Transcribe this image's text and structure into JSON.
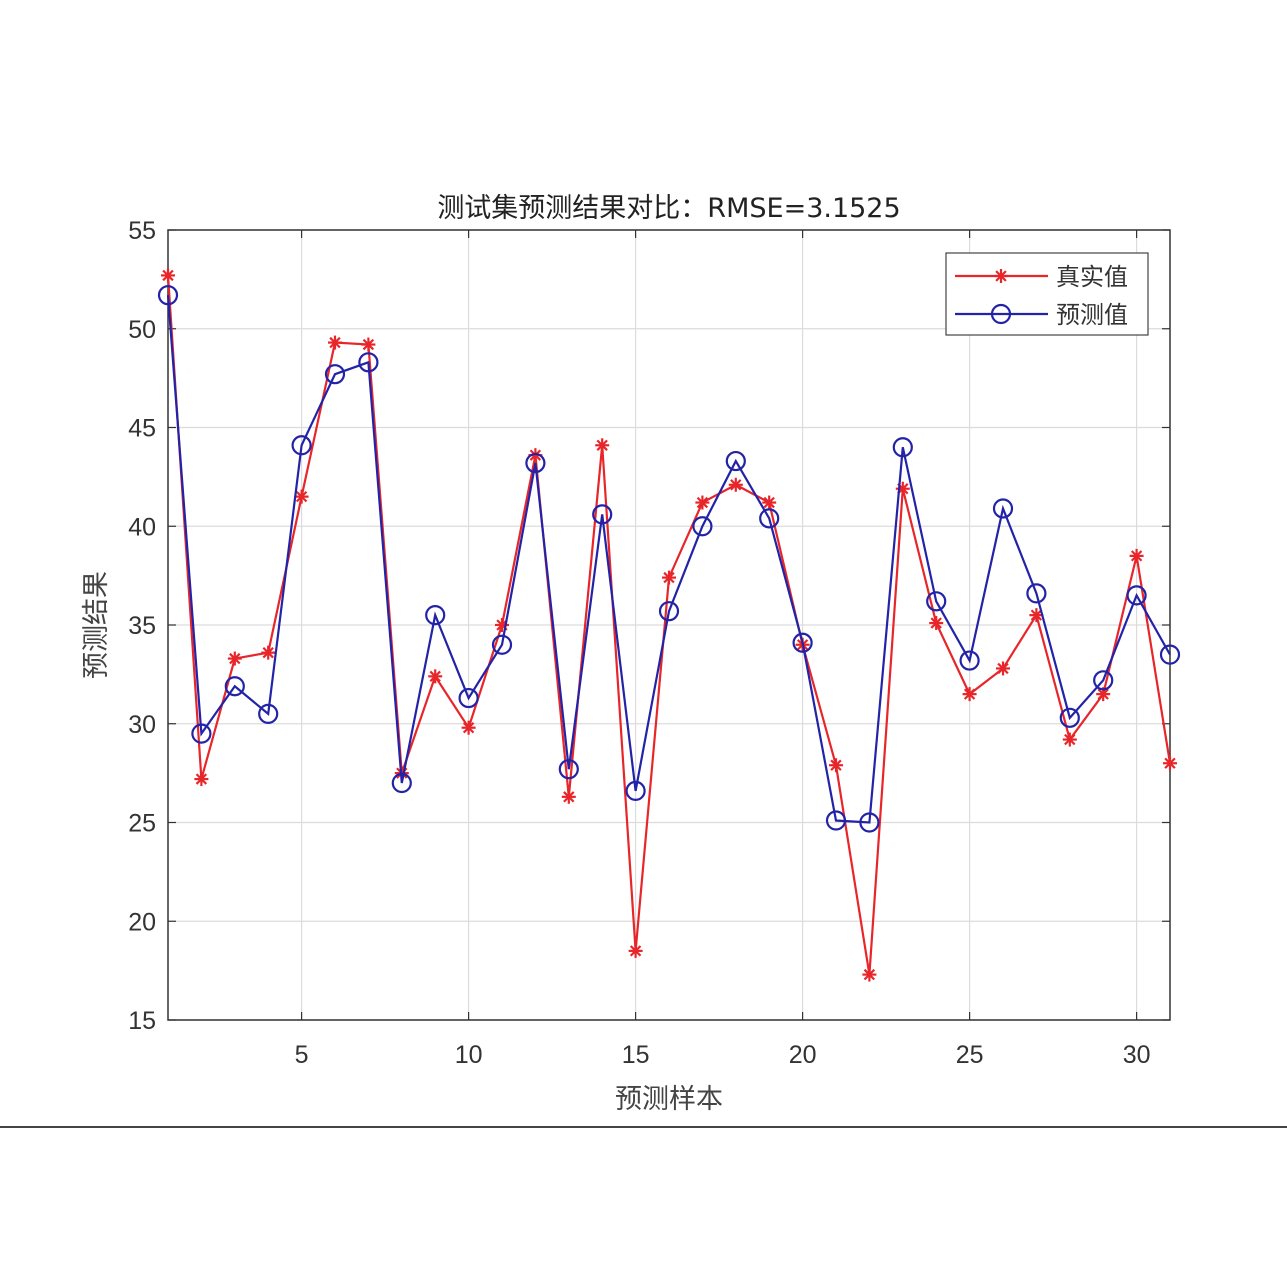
{
  "chart_data": {
    "type": "line",
    "title": "测试集预测结果对比：RMSE=3.1525",
    "xlabel": "预测样本",
    "ylabel": "预测结果",
    "xlim": [
      1,
      31
    ],
    "ylim": [
      15,
      55
    ],
    "xticks": [
      5,
      10,
      15,
      20,
      25,
      30
    ],
    "yticks": [
      15,
      20,
      25,
      30,
      35,
      40,
      45,
      50,
      55
    ],
    "grid": true,
    "legend_position": "upper right",
    "x": [
      1,
      2,
      3,
      4,
      5,
      6,
      7,
      8,
      9,
      10,
      11,
      12,
      13,
      14,
      15,
      16,
      17,
      18,
      19,
      20,
      21,
      22,
      23,
      24,
      25,
      26,
      27,
      28,
      29,
      30,
      31
    ],
    "series": [
      {
        "name": "真实值",
        "color": "#e8262a",
        "marker": "asterisk",
        "values": [
          52.7,
          27.2,
          33.3,
          33.6,
          41.5,
          49.3,
          49.2,
          27.5,
          32.4,
          29.8,
          35.0,
          43.6,
          26.3,
          44.1,
          18.5,
          37.4,
          41.2,
          42.1,
          41.2,
          34.0,
          27.9,
          17.3,
          41.9,
          35.1,
          31.5,
          32.8,
          35.5,
          29.2,
          31.5,
          38.5,
          28.0
        ]
      },
      {
        "name": "预测值",
        "color": "#2323a8",
        "marker": "circle",
        "values": [
          51.7,
          29.5,
          31.9,
          30.5,
          44.1,
          47.7,
          48.3,
          27.0,
          35.5,
          31.3,
          34.0,
          43.2,
          27.7,
          40.6,
          26.6,
          35.7,
          40.0,
          43.3,
          40.4,
          34.1,
          25.1,
          25.0,
          44.0,
          36.2,
          33.2,
          40.9,
          36.6,
          30.3,
          32.2,
          36.5,
          33.5
        ]
      }
    ]
  }
}
